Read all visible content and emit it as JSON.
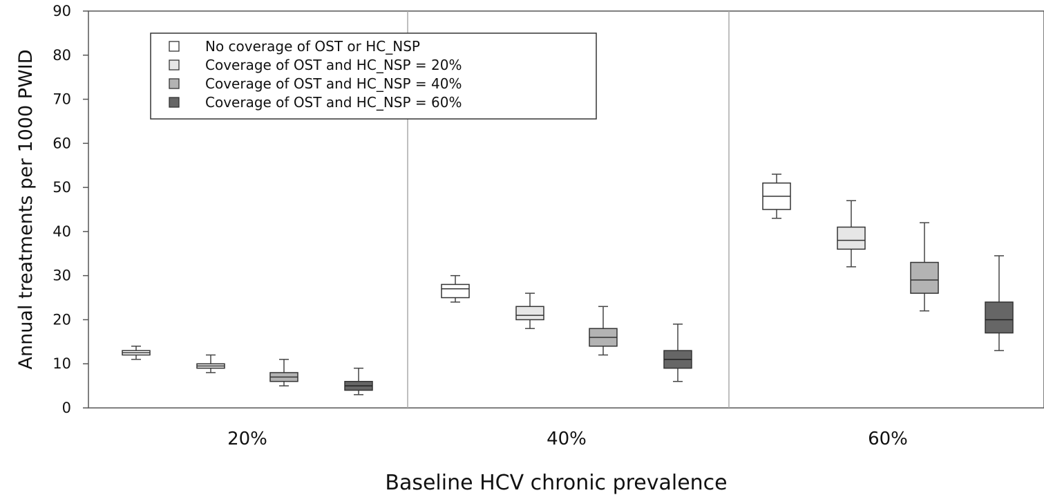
{
  "chart_data": {
    "type": "box",
    "title": "",
    "xlabel": "Baseline HCV chronic prevalence",
    "ylabel": "Annual treatments per 1000 PWID",
    "ylim": [
      0,
      90
    ],
    "yticks": [
      0,
      10,
      20,
      30,
      40,
      50,
      60,
      70,
      80,
      90
    ],
    "grid": false,
    "legend_position": "top-left",
    "categories": [
      "20%",
      "40%",
      "60%"
    ],
    "series": [
      {
        "name": "No coverage of OST or HC_NSP",
        "color": "#ffffff",
        "median_color": "#333333",
        "boxes": [
          {
            "min": 11,
            "q1": 12,
            "median": 12.5,
            "q3": 13,
            "max": 14
          },
          {
            "min": 24,
            "q1": 25,
            "median": 27,
            "q3": 28,
            "max": 30
          },
          {
            "min": 43,
            "q1": 45,
            "median": 48,
            "q3": 51,
            "max": 53
          }
        ]
      },
      {
        "name": "Coverage of OST and HC_NSP = 20%",
        "color": "#e6e6e6",
        "median_color": "#333333",
        "boxes": [
          {
            "min": 8,
            "q1": 9,
            "median": 9.5,
            "q3": 10,
            "max": 12
          },
          {
            "min": 18,
            "q1": 20,
            "median": 21,
            "q3": 23,
            "max": 26
          },
          {
            "min": 32,
            "q1": 36,
            "median": 38,
            "q3": 41,
            "max": 47
          }
        ]
      },
      {
        "name": "Coverage of OST and HC_NSP = 40%",
        "color": "#b3b3b3",
        "median_color": "#333333",
        "boxes": [
          {
            "min": 5,
            "q1": 6,
            "median": 7,
            "q3": 8,
            "max": 11
          },
          {
            "min": 12,
            "q1": 14,
            "median": 16,
            "q3": 18,
            "max": 23
          },
          {
            "min": 22,
            "q1": 26,
            "median": 29,
            "q3": 33,
            "max": 42
          }
        ]
      },
      {
        "name": "Coverage of OST and HC_NSP = 60%",
        "color": "#666666",
        "median_color": "#222222",
        "boxes": [
          {
            "min": 3,
            "q1": 4,
            "median": 5,
            "q3": 6,
            "max": 9
          },
          {
            "min": 6,
            "q1": 9,
            "median": 11,
            "q3": 13,
            "max": 19
          },
          {
            "min": 13,
            "q1": 17,
            "median": 20,
            "q3": 24,
            "max": 34.5
          }
        ]
      }
    ]
  }
}
